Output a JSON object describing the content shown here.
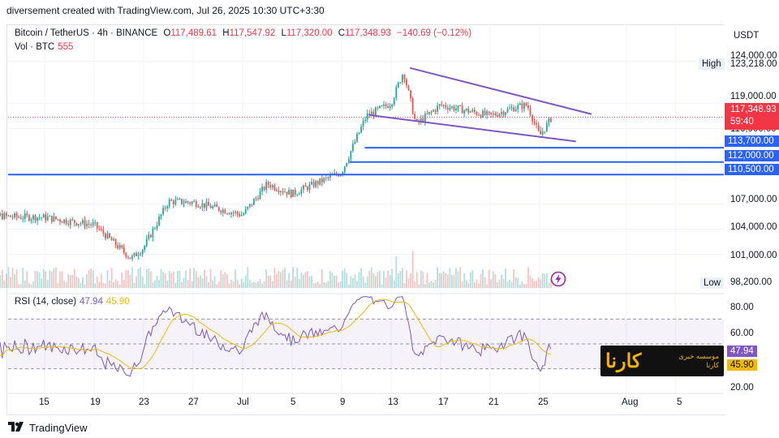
{
  "header": {
    "caption": "diversement created with TradingView.com, Jul 26, 2025 10:30 UTC+3:30"
  },
  "legend": {
    "symbol": "Bitcoin / TetherUS · 4h · BINANCE",
    "open_k": "O",
    "open": "117,489.61",
    "high_k": "H",
    "high": "117,547.92",
    "low_k": "L",
    "low": "117,320.00",
    "close_k": "C",
    "close": "117,348.93",
    "change": "−140.69 (−0.12%)",
    "vol_label": "Vol · BTC",
    "vol_value": "555"
  },
  "price_axis": {
    "currency": "USDT",
    "labels": [
      "124,000.00",
      "119,000.00",
      "116,000.00",
      "107,000.00",
      "104,000.00",
      "101,000.00"
    ],
    "high_label": "High",
    "high_value": "123,218.00",
    "low_label": "Low",
    "low_value": "98,200.00",
    "current_price": "117,348.93",
    "countdown": "59:40",
    "levels": [
      "113,700.00",
      "112,000.00",
      "110,500.00"
    ]
  },
  "rsi": {
    "label": "RSI (14, close)",
    "value_rsi": "47.94",
    "value_ma": "45.90",
    "axis": [
      "80.00",
      "60.00",
      "20.00"
    ]
  },
  "time_axis": [
    "15",
    "19",
    "23",
    "27",
    "Jul",
    "5",
    "9",
    "13",
    "17",
    "21",
    "25",
    "Aug",
    "5"
  ],
  "watermark": {
    "logo_text": "کارنا",
    "line1": "موسسه خبری",
    "line2": "کارنا"
  },
  "footer": {
    "brand": "TradingView"
  },
  "colors": {
    "up": "#26a69a",
    "down": "#ef5350",
    "level_line": "#2962ff",
    "wedge": "#7e57c2",
    "rsi_line": "#7e57c2",
    "rsi_ma": "#f0b90b",
    "price_tag": "#f23645"
  },
  "chart_data": {
    "type": "candlestick",
    "title": "Bitcoin / TetherUS · 4h · BINANCE",
    "interval": "4h",
    "last_close": 117348.93,
    "horizontal_levels": [
      113700,
      112000,
      110500
    ],
    "session_high": 123218,
    "session_low": 98200,
    "y_range": [
      97000,
      125500
    ],
    "rsi_bands": [
      70,
      30
    ],
    "approx_closes_by_date": [
      {
        "x": "Jun 12",
        "close": 105500
      },
      {
        "x": "Jun 15",
        "close": 105400
      },
      {
        "x": "Jun 19",
        "close": 104500
      },
      {
        "x": "Jun 22",
        "close": 100500
      },
      {
        "x": "Jun 23",
        "close": 101800
      },
      {
        "x": "Jun 25",
        "close": 107300
      },
      {
        "x": "Jun 27",
        "close": 107200
      },
      {
        "x": "Jul 1",
        "close": 105700
      },
      {
        "x": "Jul 3",
        "close": 109400
      },
      {
        "x": "Jul 5",
        "close": 108200
      },
      {
        "x": "Jul 9",
        "close": 110800
      },
      {
        "x": "Jul 11",
        "close": 117500
      },
      {
        "x": "Jul 13",
        "close": 119000
      },
      {
        "x": "Jul 14",
        "close": 122800
      },
      {
        "x": "Jul 15",
        "close": 116500
      },
      {
        "x": "Jul 17",
        "close": 118800
      },
      {
        "x": "Jul 21",
        "close": 117500
      },
      {
        "x": "Jul 23",
        "close": 118500
      },
      {
        "x": "Jul 24",
        "close": 118800
      },
      {
        "x": "Jul 25",
        "close": 115100
      },
      {
        "x": "Jul 26",
        "close": 117349
      }
    ]
  }
}
